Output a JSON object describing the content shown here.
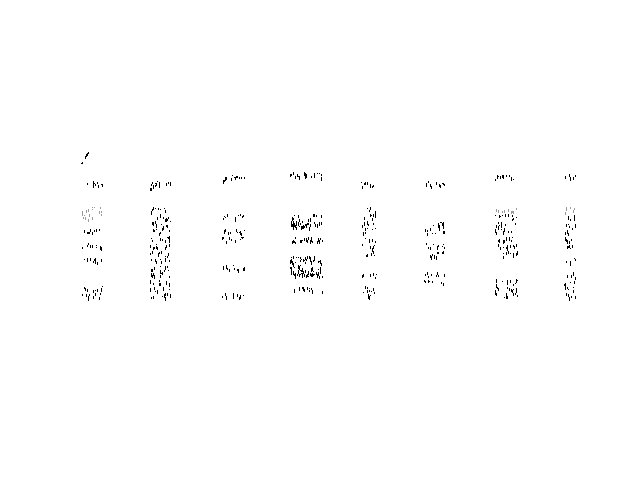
{
  "page": {
    "background": "#ffffff",
    "ink_color": "#000000",
    "faded_ink_color": "#9a9a9a"
  }
}
